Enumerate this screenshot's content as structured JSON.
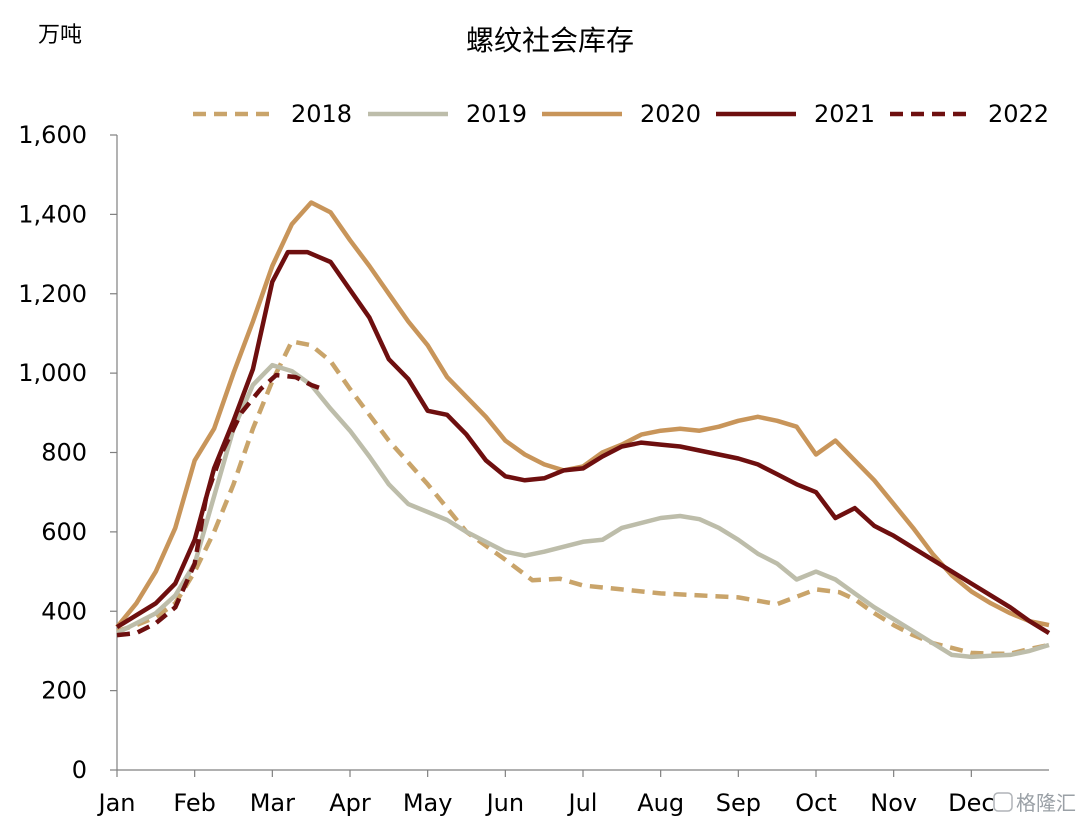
{
  "chart_data": {
    "type": "line",
    "title": "螺纹社会库存",
    "unit_label": "万吨",
    "ylim": [
      0,
      1600
    ],
    "y_ticks": [
      0,
      200,
      400,
      600,
      800,
      1000,
      1200,
      1400,
      1600
    ],
    "y_tick_labels": [
      "0",
      "200",
      "400",
      "600",
      "800",
      "1,000",
      "1,200",
      "1,400",
      "1,600"
    ],
    "x_ticks": [
      0,
      1,
      2,
      3,
      4,
      5,
      6,
      7,
      8,
      9,
      10,
      11
    ],
    "x_tick_labels": [
      "Jan",
      "Feb",
      "Mar",
      "Apr",
      "May",
      "Jun",
      "Jul",
      "Aug",
      "Sep",
      "Oct",
      "Nov",
      "Dec"
    ],
    "x_unit": "month",
    "xlim": [
      0,
      12
    ],
    "grid": false,
    "legend_position": "top",
    "series": [
      {
        "name": "2018",
        "color": "#C9A46A",
        "dash": "dashed",
        "x": [
          0,
          0.25,
          0.5,
          0.75,
          1.0,
          1.25,
          1.5,
          1.75,
          2.0,
          2.25,
          2.5,
          2.75,
          3.0,
          3.5,
          4.0,
          4.5,
          5.0,
          5.35,
          5.7,
          6.0,
          6.5,
          7.0,
          7.5,
          8.0,
          8.5,
          9.0,
          9.3,
          9.5,
          9.75,
          10.0,
          10.25,
          10.5,
          11.0,
          11.25,
          11.5,
          11.75,
          12.0
        ],
        "values": [
          350,
          365,
          385,
          420,
          500,
          600,
          720,
          860,
          980,
          1080,
          1070,
          1030,
          960,
          830,
          720,
          600,
          530,
          478,
          482,
          465,
          455,
          445,
          440,
          435,
          418,
          455,
          448,
          430,
          395,
          365,
          340,
          320,
          295,
          293,
          293,
          305,
          315
        ]
      },
      {
        "name": "2019",
        "color": "#BDBDAA",
        "dash": "solid",
        "x": [
          0,
          0.25,
          0.5,
          0.75,
          1.0,
          1.25,
          1.5,
          1.75,
          2.0,
          2.25,
          2.5,
          2.75,
          3.0,
          3.25,
          3.5,
          3.75,
          4.0,
          4.25,
          4.5,
          5.0,
          5.25,
          5.5,
          6.0,
          6.25,
          6.5,
          7.0,
          7.25,
          7.5,
          7.75,
          8.0,
          8.25,
          8.5,
          8.75,
          9.0,
          9.25,
          9.5,
          9.75,
          10.0,
          10.5,
          10.75,
          11.0,
          11.25,
          11.5,
          11.75,
          12.0
        ],
        "values": [
          345,
          370,
          395,
          440,
          520,
          690,
          860,
          970,
          1020,
          1005,
          970,
          910,
          855,
          790,
          720,
          670,
          650,
          630,
          600,
          550,
          540,
          550,
          575,
          580,
          610,
          635,
          640,
          632,
          610,
          580,
          545,
          520,
          480,
          500,
          480,
          445,
          410,
          380,
          320,
          290,
          285,
          288,
          290,
          300,
          315
        ]
      },
      {
        "name": "2020",
        "color": "#C8955A",
        "dash": "solid",
        "x": [
          0,
          0.25,
          0.5,
          0.75,
          1.0,
          1.25,
          1.5,
          1.75,
          2.0,
          2.25,
          2.5,
          2.75,
          3.0,
          3.25,
          3.5,
          3.75,
          4.0,
          4.25,
          4.5,
          4.75,
          5.0,
          5.25,
          5.5,
          5.75,
          6.0,
          6.25,
          6.5,
          6.75,
          7.0,
          7.25,
          7.5,
          7.75,
          8.0,
          8.25,
          8.5,
          8.75,
          9.0,
          9.25,
          9.5,
          9.75,
          10.0,
          10.25,
          10.5,
          10.75,
          11.0,
          11.25,
          11.5,
          11.75,
          12.0
        ],
        "values": [
          360,
          420,
          500,
          610,
          780,
          860,
          1000,
          1130,
          1270,
          1375,
          1430,
          1405,
          1335,
          1270,
          1200,
          1130,
          1070,
          990,
          940,
          890,
          830,
          795,
          770,
          755,
          765,
          800,
          820,
          845,
          855,
          860,
          855,
          865,
          880,
          890,
          880,
          865,
          795,
          830,
          780,
          730,
          670,
          610,
          545,
          490,
          450,
          420,
          395,
          375,
          365
        ]
      },
      {
        "name": "2021",
        "color": "#6E0F0F",
        "dash": "solid",
        "x": [
          0,
          0.25,
          0.5,
          0.75,
          1.0,
          1.25,
          1.5,
          1.75,
          2.0,
          2.2,
          2.45,
          2.75,
          3.0,
          3.25,
          3.5,
          3.75,
          4.0,
          4.25,
          4.5,
          4.75,
          5.0,
          5.25,
          5.5,
          5.75,
          6.0,
          6.25,
          6.5,
          6.75,
          7.0,
          7.25,
          7.5,
          7.75,
          8.0,
          8.25,
          8.5,
          8.75,
          9.0,
          9.25,
          9.5,
          9.75,
          10.0,
          10.25,
          10.5,
          10.75,
          11.0,
          11.25,
          11.5,
          11.75,
          12.0
        ],
        "values": [
          360,
          390,
          420,
          470,
          580,
          760,
          880,
          1010,
          1230,
          1305,
          1305,
          1280,
          1210,
          1140,
          1035,
          985,
          905,
          895,
          845,
          780,
          740,
          730,
          735,
          755,
          760,
          790,
          815,
          825,
          820,
          815,
          805,
          795,
          785,
          770,
          745,
          720,
          700,
          635,
          660,
          615,
          590,
          560,
          530,
          500,
          470,
          440,
          410,
          375,
          345
        ]
      },
      {
        "name": "2022",
        "color": "#6E0F0F",
        "dash": "dashed",
        "x": [
          0,
          0.25,
          0.5,
          0.75,
          1.0,
          1.15,
          1.35,
          1.6,
          1.85,
          2.05,
          2.3,
          2.5,
          2.65
        ],
        "values": [
          340,
          345,
          370,
          410,
          520,
          690,
          800,
          900,
          960,
          995,
          990,
          970,
          960
        ]
      }
    ]
  },
  "watermark": "格隆汇"
}
